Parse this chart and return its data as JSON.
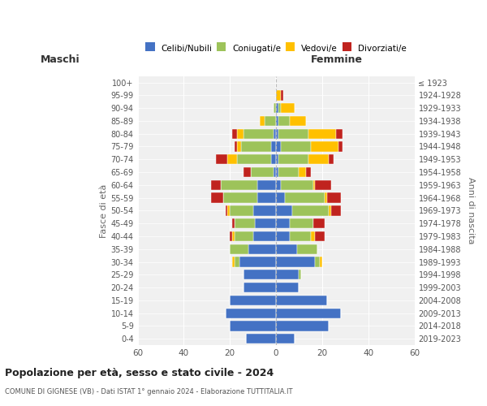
{
  "age_groups": [
    "0-4",
    "5-9",
    "10-14",
    "15-19",
    "20-24",
    "25-29",
    "30-34",
    "35-39",
    "40-44",
    "45-49",
    "50-54",
    "55-59",
    "60-64",
    "65-69",
    "70-74",
    "75-79",
    "80-84",
    "85-89",
    "90-94",
    "95-99",
    "100+"
  ],
  "birth_years": [
    "2019-2023",
    "2014-2018",
    "2009-2013",
    "2004-2008",
    "1999-2003",
    "1994-1998",
    "1989-1993",
    "1984-1988",
    "1979-1983",
    "1974-1978",
    "1969-1973",
    "1964-1968",
    "1959-1963",
    "1954-1958",
    "1949-1953",
    "1944-1948",
    "1939-1943",
    "1934-1938",
    "1929-1933",
    "1924-1928",
    "≤ 1923"
  ],
  "male": {
    "celibi": [
      13,
      20,
      22,
      20,
      14,
      14,
      16,
      12,
      10,
      9,
      10,
      8,
      8,
      1,
      2,
      2,
      1,
      0,
      0,
      0,
      0
    ],
    "coniugati": [
      0,
      0,
      0,
      0,
      0,
      0,
      2,
      8,
      8,
      9,
      10,
      15,
      16,
      10,
      15,
      13,
      13,
      5,
      1,
      0,
      0
    ],
    "vedovi": [
      0,
      0,
      0,
      0,
      0,
      0,
      1,
      0,
      1,
      0,
      1,
      0,
      0,
      0,
      4,
      2,
      3,
      2,
      0,
      0,
      0
    ],
    "divorziati": [
      0,
      0,
      0,
      0,
      0,
      0,
      0,
      0,
      1,
      1,
      1,
      5,
      4,
      3,
      5,
      1,
      2,
      0,
      0,
      0,
      0
    ]
  },
  "female": {
    "nubili": [
      8,
      23,
      28,
      22,
      10,
      10,
      17,
      9,
      6,
      6,
      7,
      4,
      2,
      1,
      1,
      2,
      1,
      1,
      1,
      0,
      0
    ],
    "coniugate": [
      0,
      0,
      0,
      0,
      0,
      1,
      2,
      9,
      9,
      10,
      16,
      17,
      14,
      9,
      13,
      13,
      13,
      5,
      1,
      0,
      0
    ],
    "vedove": [
      0,
      0,
      0,
      0,
      0,
      0,
      1,
      0,
      2,
      0,
      1,
      1,
      1,
      3,
      9,
      12,
      12,
      7,
      6,
      2,
      0
    ],
    "divorziate": [
      0,
      0,
      0,
      0,
      0,
      0,
      0,
      0,
      4,
      5,
      4,
      6,
      7,
      2,
      2,
      2,
      3,
      0,
      0,
      1,
      0
    ]
  },
  "colors": {
    "celibi": "#4472C4",
    "coniugati": "#9DC35A",
    "vedovi": "#FFC000",
    "divorziati": "#C0231E"
  },
  "xlim": 60,
  "title": "Popolazione per età, sesso e stato civile - 2024",
  "subtitle": "COMUNE DI GIGNESE (VB) - Dati ISTAT 1° gennaio 2024 - Elaborazione TUTTITALIA.IT",
  "ylabel_left": "Fasce di età",
  "ylabel_right": "Anni di nascita",
  "xlabel_left": "Maschi",
  "xlabel_right": "Femmine",
  "bg_color": "#ffffff",
  "grid_color": "#cccccc"
}
